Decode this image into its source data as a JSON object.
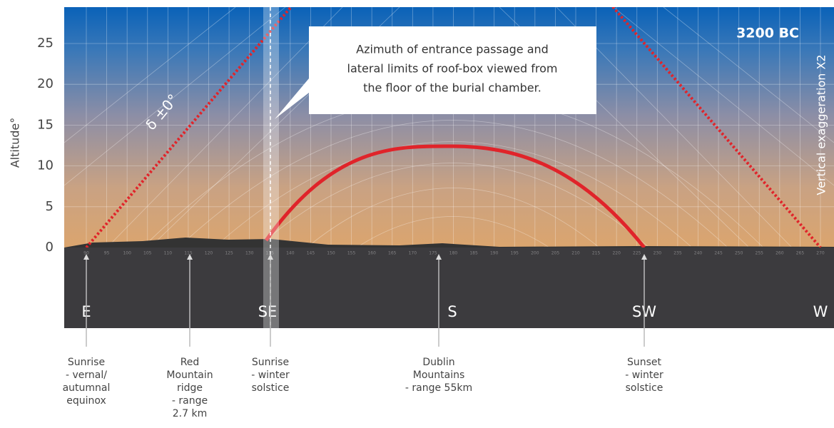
{
  "y_axis": {
    "label": "Altitude°",
    "ticks": [
      0,
      5,
      10,
      15,
      20,
      25
    ]
  },
  "azimuth_ticks": [
    90,
    95,
    100,
    105,
    110,
    115,
    120,
    125,
    130,
    135,
    140,
    145,
    150,
    155,
    160,
    165,
    170,
    175,
    180,
    185,
    190,
    195,
    200,
    205,
    210,
    215,
    220,
    225,
    230,
    235,
    240,
    245,
    250,
    255,
    260,
    265,
    270
  ],
  "epoch": "3200 BC",
  "exaggeration": "Vertical exaggeration X2",
  "curve_label": "δ ±0°",
  "callout": [
    "Azimuth of entrance passage and",
    "lateral limits of roof-box viewed from",
    "the floor of the burial chamber."
  ],
  "compass": [
    "E",
    "SE",
    "S",
    "SW",
    "W"
  ],
  "annotations": [
    {
      "lines": [
        "Sunrise",
        "- vernal/",
        "autumnal",
        "equinox"
      ]
    },
    {
      "lines": [
        "Red",
        "Mountain",
        "ridge",
        "- range",
        "2.7 km"
      ]
    },
    {
      "lines": [
        "Sunrise",
        "- winter",
        "solstice"
      ]
    },
    {
      "lines": [
        "Dublin",
        "Mountains",
        "- range 55km"
      ]
    },
    {
      "lines": [
        "Sunset",
        "- winter",
        "solstice"
      ]
    }
  ]
}
